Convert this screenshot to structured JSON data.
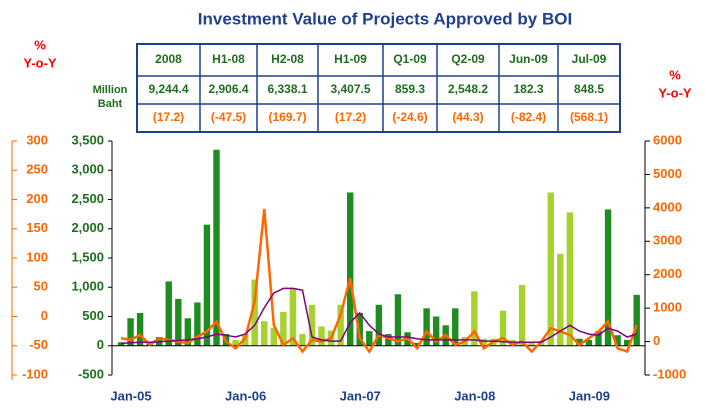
{
  "chart_data": {
    "type": "bar",
    "title": "Investment Value of Projects Approved by BOI",
    "ylabel": [
      "Million",
      "Baht"
    ],
    "y2label": [
      "%",
      "Y-o-Y"
    ],
    "y3label": [
      "%",
      "Y-o-Y"
    ],
    "table": {
      "header": [
        "2008",
        "H1-08",
        "H2-08",
        "H1-09",
        "Q1-09",
        "Q2-09",
        "Jun-09",
        "Jul-09"
      ],
      "values": [
        "9,244.4",
        "2,906.4",
        "6,338.1",
        "3,407.5",
        "859.3",
        "2,548.2",
        "182.3",
        "848.5"
      ],
      "changes": [
        "(17.2)",
        "(-47.5)",
        "(169.7)",
        "(17.2)",
        "(-24.6)",
        "(44.3)",
        "(-82.4)",
        "(568.1)"
      ]
    },
    "categories": [
      "Jan-05",
      null,
      null,
      null,
      null,
      null,
      null,
      null,
      null,
      null,
      null,
      null,
      "Jan-06",
      null,
      null,
      null,
      null,
      null,
      null,
      null,
      null,
      null,
      null,
      null,
      "Jan-07",
      null,
      null,
      null,
      null,
      null,
      null,
      null,
      null,
      null,
      null,
      null,
      "Jan-08",
      null,
      null,
      null,
      null,
      null,
      null,
      null,
      null,
      null,
      null,
      null,
      "Jan-09",
      null,
      null,
      null,
      null,
      null,
      null
    ],
    "values": [
      60,
      470,
      560,
      40,
      150,
      1100,
      800,
      470,
      740,
      2070,
      3350,
      200,
      100,
      200,
      1130,
      420,
      310,
      580,
      980,
      200,
      700,
      330,
      260,
      700,
      2620,
      560,
      250,
      700,
      200,
      880,
      230,
      50,
      640,
      500,
      350,
      640,
      150,
      930,
      120,
      120,
      600,
      100,
      1040,
      50,
      80,
      2620,
      1570,
      2280,
      120,
      100,
      250,
      2330,
      180,
      100,
      870
    ],
    "colors": [
      "#1e8c1e",
      "#1e8c1e",
      "#1e8c1e",
      "#1e8c1e",
      "#1e8c1e",
      "#1e8c1e",
      "#1e8c1e",
      "#1e8c1e",
      "#1e8c1e",
      "#1e8c1e",
      "#1e8c1e",
      "#1e8c1e",
      "#a6d22e",
      "#a6d22e",
      "#a6d22e",
      "#a6d22e",
      "#a6d22e",
      "#a6d22e",
      "#a6d22e",
      "#a6d22e",
      "#a6d22e",
      "#a6d22e",
      "#a6d22e",
      "#a6d22e",
      "#1e8c1e",
      "#1e8c1e",
      "#1e8c1e",
      "#1e8c1e",
      "#1e8c1e",
      "#1e8c1e",
      "#1e8c1e",
      "#1e8c1e",
      "#1e8c1e",
      "#1e8c1e",
      "#1e8c1e",
      "#1e8c1e",
      "#a6d22e",
      "#a6d22e",
      "#a6d22e",
      "#a6d22e",
      "#a6d22e",
      "#a6d22e",
      "#a6d22e",
      "#a6d22e",
      "#a6d22e",
      "#a6d22e",
      "#a6d22e",
      "#a6d22e",
      "#1e8c1e",
      "#1e8c1e",
      "#1e8c1e",
      "#1e8c1e",
      "#1e8c1e",
      "#1e8c1e",
      "#1e8c1e"
    ],
    "lines": [
      {
        "color": "#ff6600",
        "axis": "y2",
        "values": [
          100,
          50,
          200,
          -100,
          100,
          50,
          0,
          -50,
          150,
          300,
          600,
          0,
          -200,
          100,
          1200,
          3970,
          500,
          -100,
          100,
          -300,
          50,
          0,
          100,
          800,
          1900,
          100,
          -300,
          200,
          100,
          0,
          100,
          -200,
          300,
          0,
          200,
          -100,
          0,
          300,
          -200,
          0,
          100,
          -100,
          0,
          -300,
          0,
          400,
          300,
          200,
          -100,
          100,
          300,
          600,
          -200,
          -300,
          500
        ]
      },
      {
        "color": "#800080",
        "axis": "y",
        "values": [
          40,
          50,
          60,
          60,
          70,
          80,
          90,
          100,
          120,
          150,
          200,
          180,
          150,
          200,
          350,
          650,
          900,
          980,
          980,
          950,
          150,
          100,
          80,
          80,
          400,
          560,
          350,
          200,
          150,
          150,
          150,
          120,
          100,
          100,
          100,
          100,
          100,
          100,
          80,
          80,
          70,
          60,
          60,
          60,
          60,
          150,
          250,
          350,
          250,
          200,
          180,
          300,
          250,
          150,
          200
        ]
      }
    ],
    "ylim": [
      -500,
      3500
    ],
    "yticks": [
      -500,
      0,
      500,
      {
        "value": 1000,
        "label": "1,000"
      },
      {
        "value": 1500,
        "label": "1,500"
      },
      {
        "value": 2000,
        "label": "2,000"
      },
      {
        "value": 2500,
        "label": "2,500"
      },
      {
        "value": 3000,
        "label": "3,000"
      },
      {
        "value": 3500,
        "label": "3,500"
      }
    ],
    "y2lim": [
      -1000,
      6000
    ],
    "y2ticks": [
      -1000,
      0,
      1000,
      2000,
      3000,
      4000,
      5000,
      6000
    ],
    "y3lim": [
      -100,
      300
    ],
    "y3ticks": [
      -100,
      -50,
      0,
      50,
      100,
      150,
      200,
      250,
      300
    ]
  }
}
